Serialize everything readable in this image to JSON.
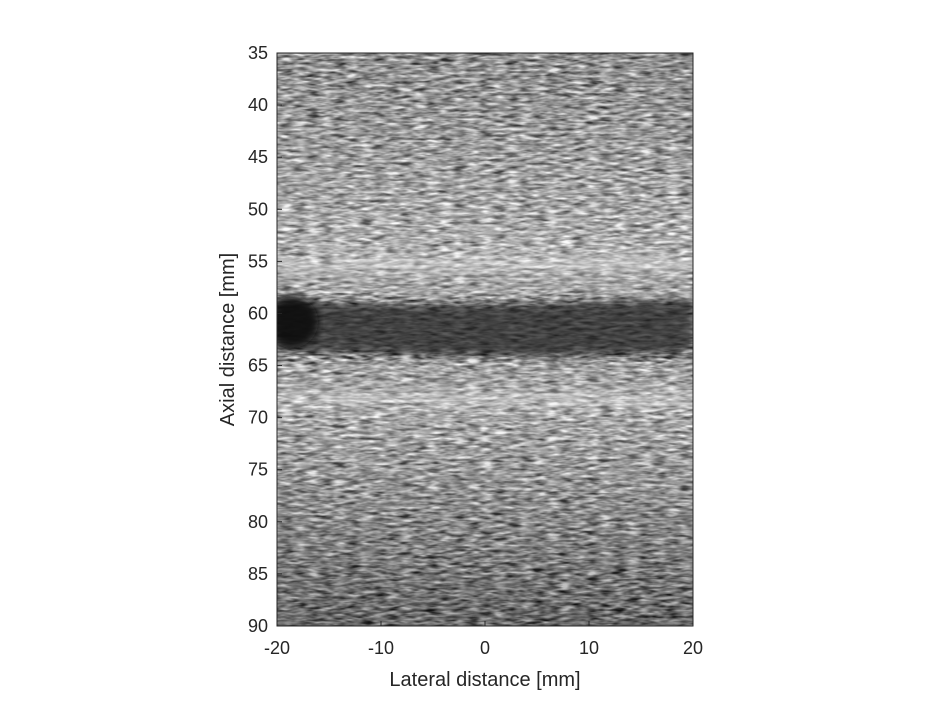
{
  "image": {
    "modality": "B-mode ultrasound image (grayscale speckle) with a dark horizontal vessel-like band",
    "colors": {
      "background": "#ffffff",
      "axis": "#262626",
      "speckle_mid": "#8a8a8a",
      "band_dark": "#3a3a3a",
      "bright_wall": "#d8d8d8"
    }
  },
  "axes": {
    "xlabel": "Lateral distance [mm]",
    "ylabel": "Axial distance [mm]",
    "xlim": [
      -20,
      20
    ],
    "ylim": [
      35,
      90
    ],
    "y_reversed": true,
    "xticks": [
      "-20",
      "-10",
      "0",
      "10",
      "20"
    ],
    "yticks": [
      "35",
      "40",
      "45",
      "50",
      "55",
      "60",
      "65",
      "70",
      "75",
      "80",
      "85",
      "90"
    ]
  }
}
